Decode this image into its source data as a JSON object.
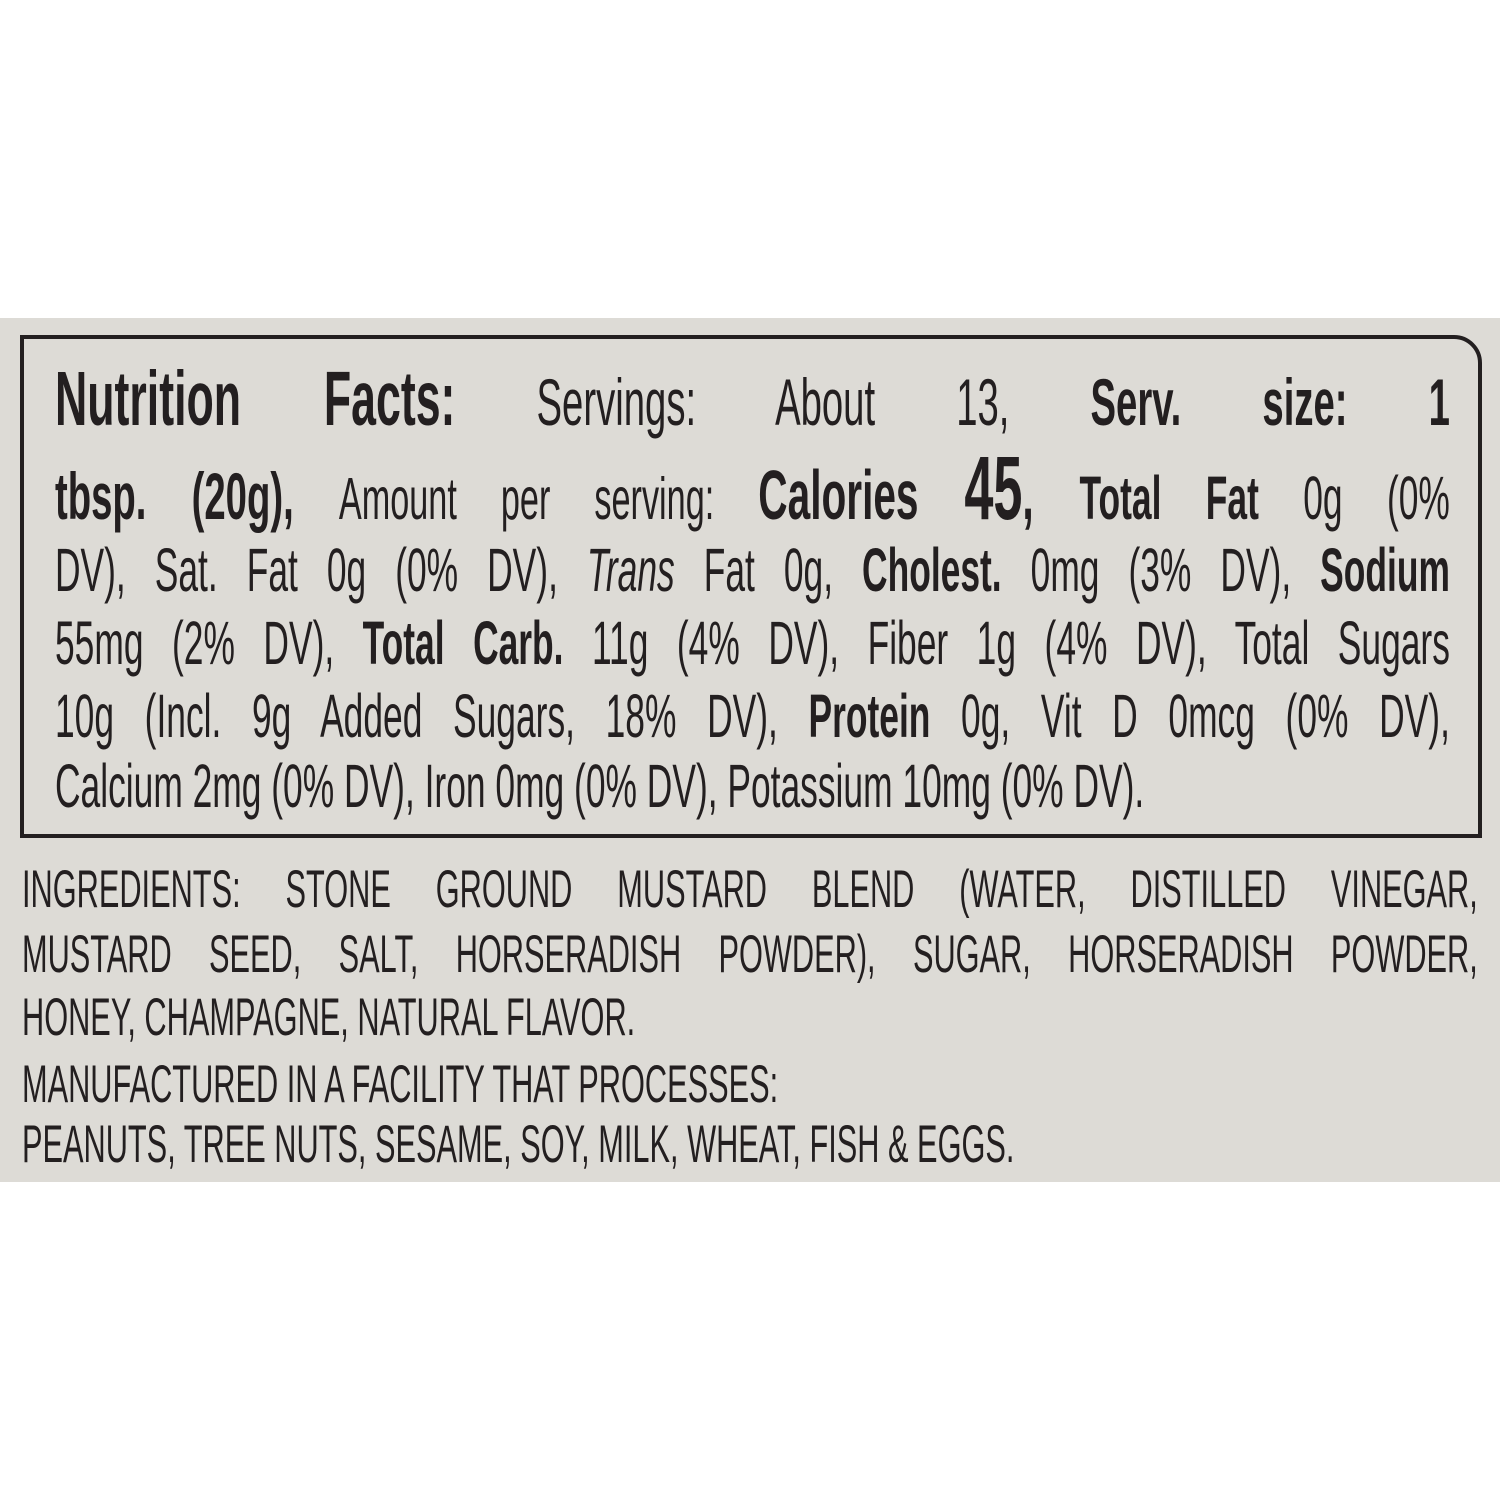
{
  "colors": {
    "background": "#dddbd6",
    "text": "#231f20",
    "page": "#ffffff"
  },
  "nutrition_facts": {
    "lines": [
      [
        {
          "t": "Nutrition Facts:",
          "s": "b f77"
        },
        {
          "t": " Servings: About 13, ",
          "s": "r f66"
        },
        {
          "t": "Serv. size: 1",
          "s": "b f66"
        }
      ],
      [
        {
          "t": "tbsp. (20g), ",
          "s": "b f66"
        },
        {
          "t": "Amount per serving: ",
          "s": "r f59"
        },
        {
          "t": "Calories ",
          "s": "b f70"
        },
        {
          "t": "45",
          "s": "b f90"
        },
        {
          "t": ", ",
          "s": "b f70"
        },
        {
          "t": "Total Fat ",
          "s": "b f61"
        },
        {
          "t": "0g (0%",
          "s": "r f61"
        }
      ],
      [
        {
          "t": "DV), Sat. Fat 0g (0% DV), ",
          "s": "r f61"
        },
        {
          "t": "Trans",
          "s": "r i f61"
        },
        {
          "t": " Fat 0g, ",
          "s": "r f61"
        },
        {
          "t": "Cholest.",
          "s": "b f61"
        },
        {
          "t": " 0mg (3% DV), ",
          "s": "r f61"
        },
        {
          "t": "Sodium",
          "s": "b f61"
        }
      ],
      [
        {
          "t": "55mg (2% DV), ",
          "s": "r f61"
        },
        {
          "t": "Total Carb.",
          "s": "b f61"
        },
        {
          "t": " 11g (4% DV), Fiber 1g (4% DV), Total Sugars",
          "s": "r f61"
        }
      ],
      [
        {
          "t": "10g (Incl. 9g Added Sugars, 18% DV), ",
          "s": "r f61"
        },
        {
          "t": "Protein",
          "s": "b f61"
        },
        {
          "t": " 0g, Vit D 0mcg (0% DV),",
          "s": "r f61"
        }
      ],
      [
        {
          "t": "Calcium 2mg (0% DV), Iron 0mg (0% DV), Potassium 10mg (0% DV).",
          "s": "r f61"
        }
      ]
    ]
  },
  "ingredients": {
    "lines": [
      "INGREDIENTS: STONE GROUND MUSTARD BLEND (WATER, DISTILLED VINEGAR,",
      "MUSTARD SEED, SALT, HORSERADISH POWDER), SUGAR, HORSERADISH POWDER,",
      "HONEY, CHAMPAGNE, NATURAL FLAVOR."
    ]
  },
  "allergen": {
    "lines": [
      "MANUFACTURED IN A FACILITY THAT PROCESSES:",
      "PEANUTS, TREE NUTS, SESAME, SOY, MILK, WHEAT, FISH & EGGS."
    ]
  }
}
